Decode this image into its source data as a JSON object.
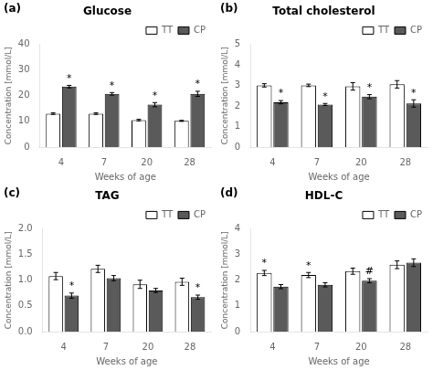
{
  "chart_data": [
    {
      "type": "bar",
      "title": "Glucose",
      "xlabel": "Weeks of age",
      "ylabel": "Concentration [mmol/L]",
      "categories": [
        "4",
        "7",
        "20",
        "28"
      ],
      "series": [
        {
          "name": "TT",
          "color": "#ffffff",
          "values": [
            13.0,
            13.0,
            10.5,
            10.2
          ],
          "errors": [
            0.3,
            0.3,
            0.3,
            0.2
          ]
        },
        {
          "name": "CP",
          "color": "#5a5a5a",
          "values": [
            23.5,
            20.7,
            16.5,
            20.7
          ],
          "errors": [
            0.5,
            0.5,
            0.8,
            1.0
          ]
        }
      ],
      "ylim": [
        0,
        40
      ],
      "yticks": [
        0,
        10,
        20,
        30,
        40
      ],
      "grid": false,
      "legend": "upper right",
      "annotations": [
        {
          "text": "(a)"
        },
        {
          "text": "*",
          "series": "CP",
          "category": "4"
        },
        {
          "text": "*",
          "series": "CP",
          "category": "7"
        },
        {
          "text": "*",
          "series": "CP",
          "category": "20"
        },
        {
          "text": "*",
          "series": "CP",
          "category": "28"
        }
      ]
    },
    {
      "type": "bar",
      "title": "Total cholesterol",
      "xlabel": "Weeks of age",
      "ylabel": "Concentration [mmol/L]",
      "categories": [
        "4",
        "7",
        "20",
        "28"
      ],
      "series": [
        {
          "name": "TT",
          "color": "#ffffff",
          "values": [
            3.0,
            3.0,
            2.95,
            3.05
          ],
          "errors": [
            0.08,
            0.06,
            0.18,
            0.18
          ]
        },
        {
          "name": "CP",
          "color": "#5a5a5a",
          "values": [
            2.18,
            2.07,
            2.45,
            2.12
          ],
          "errors": [
            0.08,
            0.05,
            0.1,
            0.18
          ]
        }
      ],
      "ylim": [
        0,
        5
      ],
      "yticks": [
        0,
        1,
        2,
        3,
        4,
        5
      ],
      "grid": false,
      "legend": "upper right",
      "annotations": [
        {
          "text": "(b)"
        },
        {
          "text": "*",
          "series": "CP",
          "category": "4"
        },
        {
          "text": "*",
          "series": "CP",
          "category": "7"
        },
        {
          "text": "*",
          "series": "CP",
          "category": "20"
        },
        {
          "text": "*",
          "series": "CP",
          "category": "28"
        }
      ]
    },
    {
      "type": "bar",
      "title": "TAG",
      "xlabel": "Weeks of age",
      "ylabel": "Concentration [mmol/L]",
      "categories": [
        "4",
        "7",
        "20",
        "28"
      ],
      "series": [
        {
          "name": "TT",
          "color": "#ffffff",
          "values": [
            1.08,
            1.22,
            0.92,
            0.97
          ],
          "errors": [
            0.07,
            0.07,
            0.08,
            0.07
          ]
        },
        {
          "name": "CP",
          "color": "#5a5a5a",
          "values": [
            0.7,
            1.04,
            0.8,
            0.67
          ],
          "errors": [
            0.05,
            0.05,
            0.04,
            0.04
          ]
        }
      ],
      "ylim": [
        0,
        2
      ],
      "yticks": [
        {
          "value": 0,
          "label": "0.0"
        },
        0.5,
        {
          "value": 1,
          "label": "1.0"
        },
        1.5,
        {
          "value": 2,
          "label": "2.0"
        }
      ],
      "grid": false,
      "legend": "upper right",
      "annotations": [
        {
          "text": "(c)"
        },
        {
          "text": "*",
          "series": "CP",
          "category": "4"
        },
        {
          "text": "*",
          "series": "CP",
          "category": "28"
        }
      ]
    },
    {
      "type": "bar",
      "title": "HDL-C",
      "xlabel": "Weeks of age",
      "ylabel": "Concentration [mmol/L]",
      "categories": [
        "4",
        "7",
        "20",
        "28"
      ],
      "series": [
        {
          "name": "TT",
          "color": "#ffffff",
          "values": [
            2.28,
            2.2,
            2.35,
            2.6
          ],
          "errors": [
            0.1,
            0.1,
            0.12,
            0.15
          ]
        },
        {
          "name": "CP",
          "color": "#5a5a5a",
          "values": [
            1.75,
            1.82,
            1.98,
            2.68
          ],
          "errors": [
            0.08,
            0.08,
            0.08,
            0.15
          ]
        }
      ],
      "ylim": [
        0,
        4
      ],
      "yticks": [
        0,
        1,
        2,
        3,
        4
      ],
      "grid": false,
      "legend": "upper right",
      "annotations": [
        {
          "text": "(d)"
        },
        {
          "text": "*",
          "series": "TT",
          "category": "4"
        },
        {
          "text": "*",
          "series": "TT",
          "category": "7"
        },
        {
          "text": "#",
          "series": "CP",
          "category": "20"
        }
      ]
    }
  ]
}
